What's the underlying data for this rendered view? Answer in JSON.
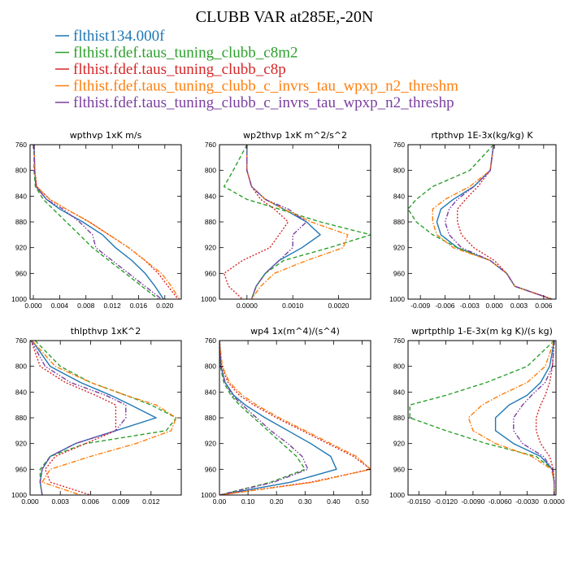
{
  "title": "CLUBB VAR at285E,-20N",
  "colors": {
    "flthist134.000f": "#1f77b4",
    "flthist.fdef.taus_tuning_clubb_c8m2": "#2ca02c",
    "flthist.fdef.taus_tuning_clubb_c8p": "#d62728",
    "flthist.fdef.taus_tuning_clubb_c_invrs_tau_wpxp_n2_threshm": "#ff7f0e",
    "flthist.fdef.taus_tuning_clubb_c_invrs_tau_wpxp_n2_threshp": "#7b3fa0"
  },
  "chart_data": [
    {
      "type": "line",
      "title": "wpthvp   1xK m/s",
      "xlim": [
        -0.0005,
        0.0225
      ],
      "ylim": [
        760,
        1000
      ],
      "y_inverted": true,
      "xticks": [
        0.0,
        0.004,
        0.008,
        0.012,
        0.016,
        0.02
      ],
      "xtick_labels": [
        "0.000",
        "0.004",
        "0.008",
        "0.012",
        "0.016",
        "0.020"
      ],
      "yticks": [
        760,
        800,
        840,
        880,
        920,
        960,
        1000
      ],
      "y": [
        760,
        800,
        825,
        845,
        860,
        880,
        900,
        920,
        940,
        960,
        980,
        1000
      ],
      "series": [
        {
          "name": "flthist134.000f",
          "dash": "solid",
          "values": [
            0.0001,
            0.0002,
            0.0004,
            0.002,
            0.004,
            0.0075,
            0.0105,
            0.0125,
            0.015,
            0.017,
            0.0185,
            0.0198
          ]
        },
        {
          "name": "flthist.fdef.taus_tuning_clubb_c8m2",
          "dash": "dashed",
          "values": [
            0.0001,
            0.0001,
            0.0003,
            0.0015,
            0.003,
            0.005,
            0.007,
            0.009,
            0.0115,
            0.014,
            0.0165,
            0.019
          ]
        },
        {
          "name": "flthist.fdef.taus_tuning_clubb_c8p",
          "dash": "dotted",
          "values": [
            0.0001,
            0.0002,
            0.0005,
            0.0025,
            0.005,
            0.0085,
            0.0115,
            0.0145,
            0.017,
            0.019,
            0.0205,
            0.022
          ]
        },
        {
          "name": "flthist.fdef.taus_tuning_clubb_c_invrs_tau_wpxp_n2_threshm",
          "dash": "dashdot",
          "values": [
            0.0001,
            0.0002,
            0.0005,
            0.0025,
            0.005,
            0.0085,
            0.0115,
            0.0145,
            0.017,
            0.0195,
            0.021,
            0.0222
          ]
        },
        {
          "name": "flthist.fdef.taus_tuning_clubb_c_invrs_tau_wpxp_n2_threshp",
          "dash": "dashdotdot",
          "values": [
            0.0001,
            0.0002,
            0.0004,
            0.002,
            0.0045,
            0.007,
            0.009,
            0.0095,
            0.012,
            0.0145,
            0.017,
            0.0195
          ]
        }
      ]
    },
    {
      "type": "line",
      "title": "wp2thvp   1xK m^2/s^2",
      "xlim": [
        -0.0006,
        0.0027
      ],
      "ylim": [
        760,
        1000
      ],
      "y_inverted": true,
      "xticks": [
        0.0,
        0.001,
        0.002
      ],
      "xtick_labels": [
        "0.0000",
        "0.0010",
        "0.0020"
      ],
      "yticks": [
        760,
        800,
        840,
        880,
        920,
        960,
        1000
      ],
      "y": [
        760,
        800,
        825,
        845,
        860,
        880,
        900,
        920,
        940,
        960,
        980,
        1000
      ],
      "series": [
        {
          "name": "flthist134.000f",
          "dash": "solid",
          "values": [
            0.0,
            0.0,
            0.0001,
            0.0004,
            0.0008,
            0.0013,
            0.0016,
            0.0012,
            0.0007,
            0.0004,
            0.0002,
            0.0001
          ]
        },
        {
          "name": "flthist.fdef.taus_tuning_clubb_c8m2",
          "dash": "dashed",
          "values": [
            0.0,
            -0.0003,
            -0.0005,
            0.0,
            0.0007,
            0.0016,
            0.0027,
            0.0018,
            0.0008,
            0.0004,
            0.0002,
            0.0001
          ]
        },
        {
          "name": "flthist.fdef.taus_tuning_clubb_c8p",
          "dash": "dotted",
          "values": [
            0.0,
            0.0,
            0.0001,
            0.0003,
            0.0006,
            0.0009,
            0.0007,
            0.0005,
            -0.0001,
            -0.0005,
            -0.0004,
            -0.0001
          ]
        },
        {
          "name": "flthist.fdef.taus_tuning_clubb_c_invrs_tau_wpxp_n2_threshm",
          "dash": "dashdot",
          "values": [
            0.0,
            0.0,
            0.0001,
            0.0004,
            0.0008,
            0.0014,
            0.0022,
            0.0021,
            0.0013,
            0.0006,
            0.0003,
            0.0001
          ]
        },
        {
          "name": "flthist.fdef.taus_tuning_clubb_c_invrs_tau_wpxp_n2_threshp",
          "dash": "dashdotdot",
          "values": [
            0.0,
            0.0,
            0.0001,
            0.0004,
            0.0009,
            0.0013,
            0.001,
            0.001,
            0.0007,
            0.0004,
            0.0002,
            0.0001
          ]
        }
      ]
    },
    {
      "type": "line",
      "title": "rtpthvp   1E-3x(kg/kg) K",
      "xlim": [
        -0.0105,
        0.0075
      ],
      "ylim": [
        760,
        1000
      ],
      "y_inverted": true,
      "xticks": [
        -0.009,
        -0.006,
        -0.003,
        0.0,
        0.003,
        0.006
      ],
      "xtick_labels": [
        "-0.009",
        "-0.006",
        "-0.003",
        "0.000",
        "0.003",
        "0.006"
      ],
      "yticks": [
        760,
        800,
        840,
        880,
        920,
        960,
        1000
      ],
      "y": [
        760,
        800,
        825,
        845,
        860,
        880,
        900,
        920,
        940,
        960,
        980,
        1000
      ],
      "series": [
        {
          "name": "flthist134.000f",
          "dash": "solid",
          "values": [
            -0.0001,
            -0.0005,
            -0.0025,
            -0.005,
            -0.0065,
            -0.007,
            -0.0065,
            -0.0045,
            -0.0005,
            0.0015,
            0.0025,
            0.007
          ]
        },
        {
          "name": "flthist.fdef.taus_tuning_clubb_c8m2",
          "dash": "dashed",
          "values": [
            -0.0001,
            -0.003,
            -0.0075,
            -0.0095,
            -0.0105,
            -0.0095,
            -0.0075,
            -0.0045,
            -0.0005,
            0.0015,
            0.0025,
            0.007
          ]
        },
        {
          "name": "flthist.fdef.taus_tuning_clubb_c8p",
          "dash": "dotted",
          "values": [
            -0.0001,
            -0.0005,
            -0.002,
            -0.0035,
            -0.0045,
            -0.0045,
            -0.004,
            -0.0025,
            0.0,
            0.0015,
            0.0025,
            0.007
          ]
        },
        {
          "name": "flthist.fdef.taus_tuning_clubb_c_invrs_tau_wpxp_n2_threshm",
          "dash": "dashdot",
          "values": [
            -0.0001,
            -0.0005,
            -0.003,
            -0.006,
            -0.0075,
            -0.0075,
            -0.007,
            -0.005,
            -0.0005,
            0.0015,
            0.0025,
            0.007
          ]
        },
        {
          "name": "flthist.fdef.taus_tuning_clubb_c_invrs_tau_wpxp_n2_threshp",
          "dash": "dashdotdot",
          "values": [
            -0.0001,
            -0.0005,
            -0.0025,
            -0.0045,
            -0.0055,
            -0.006,
            -0.0055,
            -0.004,
            -0.0005,
            0.0015,
            0.0025,
            0.007
          ]
        }
      ]
    },
    {
      "type": "line",
      "title": "thlpthvp   1xK^2",
      "xlim": [
        0.0,
        0.015
      ],
      "ylim": [
        760,
        1000
      ],
      "y_inverted": true,
      "xticks": [
        0.0,
        0.003,
        0.006,
        0.009,
        0.012
      ],
      "xtick_labels": [
        "0.000",
        "0.003",
        "0.006",
        "0.009",
        "0.012"
      ],
      "yticks": [
        760,
        800,
        840,
        880,
        920,
        960,
        1000
      ],
      "y": [
        760,
        800,
        825,
        845,
        860,
        880,
        900,
        920,
        940,
        960,
        980,
        1000
      ],
      "series": [
        {
          "name": "flthist134.000f",
          "dash": "solid",
          "values": [
            0.0002,
            0.002,
            0.005,
            0.008,
            0.01,
            0.0125,
            0.0085,
            0.0045,
            0.002,
            0.0012,
            0.001,
            0.0012
          ]
        },
        {
          "name": "flthist.fdef.taus_tuning_clubb_c8m2",
          "dash": "dashed",
          "values": [
            0.0005,
            0.003,
            0.006,
            0.0095,
            0.012,
            0.0145,
            0.0135,
            0.0055,
            0.002,
            0.001,
            0.001,
            0.0012
          ]
        },
        {
          "name": "flthist.fdef.taus_tuning_clubb_c8p",
          "dash": "dotted",
          "values": [
            0.0001,
            0.001,
            0.0035,
            0.0065,
            0.0085,
            0.0085,
            0.0085,
            0.0055,
            0.0025,
            0.0015,
            0.002,
            0.006
          ]
        },
        {
          "name": "flthist.fdef.taus_tuning_clubb_c_invrs_tau_wpxp_n2_threshm",
          "dash": "dashdot",
          "values": [
            0.0002,
            0.0025,
            0.006,
            0.0095,
            0.0125,
            0.0145,
            0.014,
            0.0105,
            0.006,
            0.002,
            0.0012,
            0.005
          ]
        },
        {
          "name": "flthist.fdef.taus_tuning_clubb_c_invrs_tau_wpxp_n2_threshp",
          "dash": "dashdotdot",
          "values": [
            0.0001,
            0.0015,
            0.004,
            0.0075,
            0.0095,
            0.0095,
            0.0085,
            0.0045,
            0.002,
            0.0012,
            0.001,
            0.0012
          ]
        }
      ]
    },
    {
      "type": "line",
      "title": "wp4   1x(m^4)/(s^4)",
      "xlim": [
        0.0,
        0.53
      ],
      "ylim": [
        760,
        1000
      ],
      "y_inverted": true,
      "xticks": [
        0.0,
        0.1,
        0.2,
        0.3,
        0.4,
        0.5
      ],
      "xtick_labels": [
        "0.00",
        "0.10",
        "0.20",
        "0.30",
        "0.40",
        "0.50"
      ],
      "yticks": [
        760,
        800,
        840,
        880,
        920,
        960,
        1000
      ],
      "y": [
        760,
        800,
        825,
        845,
        860,
        880,
        900,
        920,
        940,
        960,
        980,
        1000
      ],
      "series": [
        {
          "name": "flthist134.000f",
          "dash": "solid",
          "values": [
            0.0,
            0.005,
            0.02,
            0.05,
            0.09,
            0.16,
            0.24,
            0.32,
            0.39,
            0.41,
            0.25,
            0.0
          ]
        },
        {
          "name": "flthist.fdef.taus_tuning_clubb_c8m2",
          "dash": "dashed",
          "values": [
            0.0,
            0.003,
            0.015,
            0.04,
            0.07,
            0.12,
            0.17,
            0.22,
            0.27,
            0.3,
            0.18,
            0.0
          ]
        },
        {
          "name": "flthist.fdef.taus_tuning_clubb_c8p",
          "dash": "dotted",
          "values": [
            0.0,
            0.008,
            0.03,
            0.07,
            0.12,
            0.2,
            0.29,
            0.38,
            0.47,
            0.53,
            0.32,
            0.0
          ]
        },
        {
          "name": "flthist.fdef.taus_tuning_clubb_c_invrs_tau_wpxp_n2_threshm",
          "dash": "dashdot",
          "values": [
            0.0,
            0.01,
            0.035,
            0.08,
            0.13,
            0.21,
            0.3,
            0.39,
            0.48,
            0.53,
            0.33,
            0.0
          ]
        },
        {
          "name": "flthist.fdef.taus_tuning_clubb_c_invrs_tau_wpxp_n2_threshp",
          "dash": "dashdotdot",
          "values": [
            0.0,
            0.004,
            0.02,
            0.045,
            0.08,
            0.13,
            0.18,
            0.24,
            0.29,
            0.31,
            0.19,
            0.0
          ]
        }
      ]
    },
    {
      "type": "line",
      "title": "wprtpthlp   1-E-3x(m kg K)/(s kg)",
      "xlim": [
        -0.0162,
        0.0002
      ],
      "ylim": [
        760,
        1000
      ],
      "y_inverted": true,
      "xticks": [
        -0.015,
        -0.012,
        -0.009,
        -0.006,
        -0.003,
        0.0
      ],
      "xtick_labels": [
        "-0.0150",
        "-0.0120",
        "-0.0090",
        "-0.0060",
        "-0.0030",
        "0.0000"
      ],
      "yticks": [
        760,
        800,
        840,
        880,
        920,
        960,
        1000
      ],
      "y": [
        760,
        800,
        825,
        845,
        860,
        880,
        900,
        920,
        940,
        960,
        980,
        1000
      ],
      "series": [
        {
          "name": "flthist134.000f",
          "dash": "solid",
          "values": [
            0.0,
            -0.0005,
            -0.0015,
            -0.003,
            -0.005,
            -0.0065,
            -0.0065,
            -0.0045,
            -0.0015,
            -0.0002,
            0.0,
            0.0
          ]
        },
        {
          "name": "flthist.fdef.taus_tuning_clubb_c8m2",
          "dash": "dashed",
          "values": [
            0.0,
            -0.003,
            -0.0075,
            -0.012,
            -0.016,
            -0.016,
            -0.012,
            -0.0075,
            -0.002,
            -0.0002,
            0.0,
            0.0
          ]
        },
        {
          "name": "flthist.fdef.taus_tuning_clubb_c8p",
          "dash": "dotted",
          "values": [
            0.0,
            -0.0002,
            -0.0005,
            -0.001,
            -0.0015,
            -0.002,
            -0.002,
            -0.0015,
            -0.0005,
            -0.0001,
            0.0,
            0.0
          ]
        },
        {
          "name": "flthist.fdef.taus_tuning_clubb_c_invrs_tau_wpxp_n2_threshm",
          "dash": "dashdot",
          "values": [
            0.0,
            -0.001,
            -0.003,
            -0.006,
            -0.008,
            -0.0095,
            -0.009,
            -0.0065,
            -0.0025,
            -0.0003,
            0.0,
            0.0
          ]
        },
        {
          "name": "flthist.fdef.taus_tuning_clubb_c_invrs_tau_wpxp_n2_threshp",
          "dash": "dashdotdot",
          "values": [
            0.0,
            -0.0002,
            -0.001,
            -0.0025,
            -0.0035,
            -0.0045,
            -0.0045,
            -0.0035,
            -0.0012,
            -0.0002,
            0.0,
            0.0
          ]
        }
      ]
    }
  ]
}
